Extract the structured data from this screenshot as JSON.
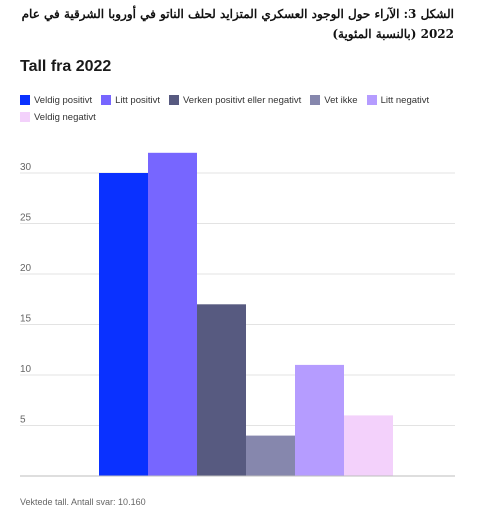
{
  "caption": "الشكل 3: الآراء حول الوجود العسكري المتزايد لحلف الناتو في أوروبا الشرقية في عام 2022 (بالنسبة المئوية)",
  "chart_title": "Tall fra 2022",
  "note": "Vektede tall. Antall svar: 10.160",
  "chart_data": {
    "type": "bar",
    "title": "Tall fra 2022",
    "xlabel": "",
    "ylabel": "",
    "ylim": [
      0,
      32
    ],
    "yticks": [
      5,
      10,
      15,
      20,
      25,
      30
    ],
    "grid": true,
    "legend_position": "top-left",
    "categories": [
      "Veldig positivt",
      "Litt positivt",
      "Verken positivt eller negativt",
      "Vet ikke",
      "Litt negativt",
      "Veldig negativt"
    ],
    "values": [
      30,
      32,
      17,
      4,
      11,
      6
    ],
    "colors": [
      "#0a31ff",
      "#7766ff",
      "#575a80",
      "#8687ad",
      "#b59cff",
      "#f3d1fb"
    ]
  }
}
